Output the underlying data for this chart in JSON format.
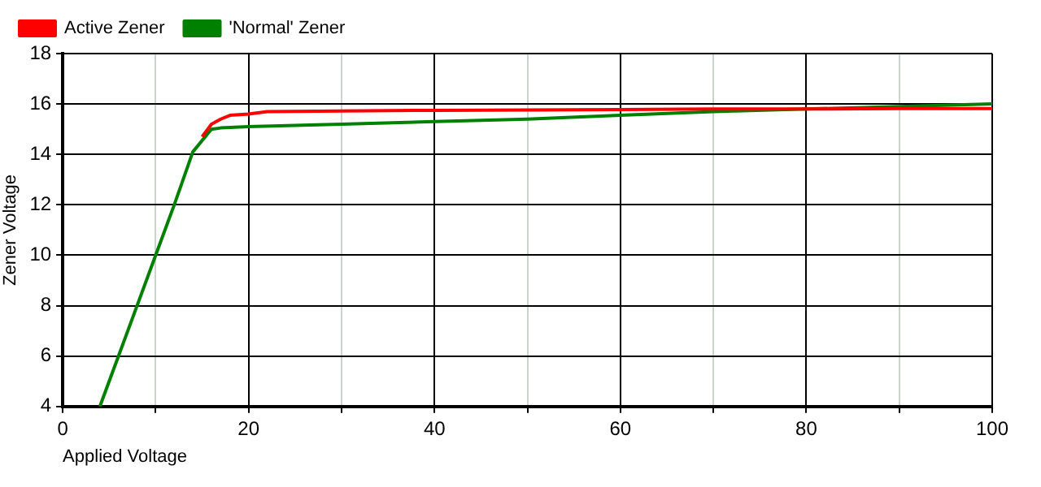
{
  "chart_data": {
    "type": "line",
    "xlabel": "Applied Voltage",
    "ylabel": "Zener Voltage",
    "series": [
      {
        "name": "Active Zener",
        "color": "#ff0000",
        "x": [
          15,
          16,
          17,
          18,
          20,
          22,
          30,
          40,
          50,
          60,
          70,
          80,
          90,
          100
        ],
        "values": [
          14.7,
          15.2,
          15.4,
          15.55,
          15.6,
          15.7,
          15.72,
          15.75,
          15.76,
          15.78,
          15.8,
          15.8,
          15.82,
          15.82
        ]
      },
      {
        "name": "'Normal' Zener",
        "color": "#008000",
        "x": [
          4,
          6,
          8,
          10,
          12,
          14,
          16,
          17,
          20,
          30,
          40,
          50,
          60,
          70,
          80,
          90,
          100
        ],
        "values": [
          4,
          6,
          8,
          10,
          12,
          14.1,
          15.0,
          15.05,
          15.1,
          15.2,
          15.3,
          15.4,
          15.55,
          15.7,
          15.8,
          15.9,
          16.0
        ]
      }
    ],
    "xlim": [
      0,
      100
    ],
    "xticks": [
      0,
      {
        "value": 10,
        "label": null
      },
      20,
      {
        "value": 30,
        "label": null
      },
      40,
      {
        "value": 50,
        "label": null
      },
      60,
      {
        "value": 70,
        "label": null
      },
      80,
      {
        "value": 90,
        "label": null
      },
      100
    ],
    "ylim": [
      4,
      18
    ],
    "yticks": [
      4,
      6,
      8,
      10,
      12,
      14,
      16,
      18
    ],
    "grid": true,
    "legend": "top left",
    "marker": "none",
    "line_style": "solid"
  }
}
